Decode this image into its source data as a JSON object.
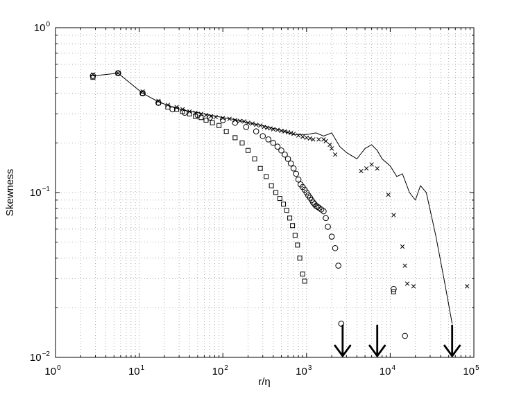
{
  "chart_data": {
    "type": "scatter",
    "xscale": "log",
    "yscale": "log",
    "xlim": [
      1,
      100000
    ],
    "ylim": [
      0.01,
      1
    ],
    "xlabel": "r/η",
    "ylabel": "Skewness",
    "grid": true,
    "x_ticks": [
      {
        "base": "10",
        "exp": "0"
      },
      {
        "base": "10",
        "exp": "1"
      },
      {
        "base": "10",
        "exp": "2"
      },
      {
        "base": "10",
        "exp": "3"
      },
      {
        "base": "10",
        "exp": "4"
      },
      {
        "base": "10",
        "exp": "5"
      }
    ],
    "y_ticks": [
      {
        "base": "10",
        "exp": "−2"
      },
      {
        "base": "10",
        "exp": "−1"
      },
      {
        "base": "10",
        "exp": "0"
      }
    ],
    "series": [
      {
        "marker": "line",
        "x": [
          2.8,
          5.6,
          11,
          17,
          25,
          35,
          50,
          70,
          100,
          150,
          200,
          300,
          400,
          500,
          700,
          1000,
          1300,
          1600,
          2000,
          2500,
          3000,
          4000,
          5000,
          6000,
          7000,
          8000,
          10000,
          12000,
          14000,
          17000,
          20000,
          23000,
          27000,
          35000,
          45000,
          55000
        ],
        "y": [
          0.51,
          0.53,
          0.4,
          0.355,
          0.33,
          0.315,
          0.305,
          0.295,
          0.285,
          0.275,
          0.265,
          0.255,
          0.245,
          0.238,
          0.225,
          0.225,
          0.23,
          0.22,
          0.23,
          0.19,
          0.175,
          0.16,
          0.185,
          0.195,
          0.18,
          0.16,
          0.145,
          0.125,
          0.13,
          0.1,
          0.09,
          0.11,
          0.1,
          0.055,
          0.028,
          0.016
        ]
      },
      {
        "marker": "cross",
        "x": [
          2.8,
          5.6,
          11,
          17,
          22,
          28,
          33,
          40,
          47,
          55,
          63,
          72,
          82,
          100,
          120,
          140,
          160,
          180,
          200,
          225,
          250,
          280,
          310,
          340,
          370,
          400,
          450,
          500,
          550,
          600,
          650,
          700,
          800,
          900,
          1000,
          1100,
          1200,
          1400,
          1600,
          1700,
          1900,
          2000,
          2200,
          4500,
          5200,
          6000,
          7000,
          9500,
          11000,
          14000,
          15000,
          16000,
          19000,
          83000
        ],
        "y": [
          0.52,
          0.53,
          0.41,
          0.36,
          0.34,
          0.33,
          0.32,
          0.31,
          0.305,
          0.3,
          0.295,
          0.29,
          0.287,
          0.283,
          0.28,
          0.275,
          0.272,
          0.27,
          0.265,
          0.262,
          0.258,
          0.255,
          0.25,
          0.247,
          0.245,
          0.242,
          0.24,
          0.237,
          0.235,
          0.232,
          0.23,
          0.227,
          0.222,
          0.218,
          0.215,
          0.213,
          0.21,
          0.21,
          0.21,
          0.205,
          0.195,
          0.185,
          0.17,
          0.135,
          0.14,
          0.148,
          0.14,
          0.097,
          0.073,
          0.047,
          0.036,
          0.028,
          0.027,
          0.027
        ]
      },
      {
        "marker": "circle",
        "x": [
          2.8,
          5.6,
          11,
          17,
          25,
          35,
          50,
          70,
          100,
          140,
          190,
          250,
          300,
          350,
          400,
          450,
          500,
          550,
          600,
          650,
          700,
          750,
          800,
          850,
          900,
          950,
          1000,
          1050,
          1100,
          1150,
          1200,
          1250,
          1300,
          1350,
          1400,
          1500,
          1600,
          1700,
          1800,
          2000,
          2200,
          2400,
          2600,
          11000,
          15000
        ],
        "y": [
          0.51,
          0.53,
          0.4,
          0.35,
          0.32,
          0.305,
          0.295,
          0.285,
          0.275,
          0.265,
          0.25,
          0.235,
          0.22,
          0.21,
          0.2,
          0.19,
          0.18,
          0.17,
          0.16,
          0.15,
          0.14,
          0.13,
          0.12,
          0.112,
          0.108,
          0.104,
          0.1,
          0.096,
          0.093,
          0.09,
          0.087,
          0.085,
          0.083,
          0.082,
          0.081,
          0.079,
          0.077,
          0.07,
          0.062,
          0.054,
          0.046,
          0.036,
          0.016,
          0.026,
          0.0135
        ]
      },
      {
        "marker": "square",
        "x": [
          2.8,
          5.6,
          11,
          17,
          22,
          28,
          33,
          40,
          47,
          55,
          63,
          75,
          90,
          110,
          140,
          170,
          200,
          240,
          280,
          330,
          380,
          430,
          480,
          530,
          580,
          630,
          680,
          730,
          780,
          830,
          900,
          950,
          11000
        ],
        "y": [
          0.5,
          0.53,
          0.4,
          0.35,
          0.33,
          0.32,
          0.31,
          0.3,
          0.29,
          0.285,
          0.275,
          0.265,
          0.255,
          0.235,
          0.215,
          0.2,
          0.18,
          0.16,
          0.14,
          0.125,
          0.11,
          0.1,
          0.092,
          0.085,
          0.078,
          0.07,
          0.063,
          0.055,
          0.048,
          0.04,
          0.032,
          0.029,
          0.025
        ]
      }
    ],
    "annotations": [
      {
        "type": "arrow-down",
        "x": 2700
      },
      {
        "type": "arrow-down",
        "x": 7000
      },
      {
        "type": "arrow-down",
        "x": 55000
      }
    ]
  }
}
